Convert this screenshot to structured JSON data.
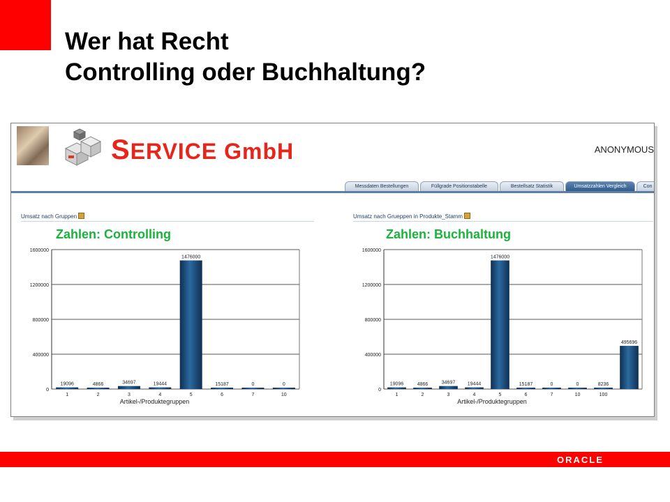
{
  "slide": {
    "title_line1": "Wer hat Recht",
    "title_line2": "Controlling oder Buchhaltung?",
    "footer_logo": "ORACLE"
  },
  "app": {
    "brand_s": "S",
    "brand_rest": "ERVICE GmbH",
    "user": "ANONYMOUS",
    "tabs": [
      {
        "label": "Messdaten Bestellungen",
        "active": false
      },
      {
        "label": "Füllgrade Positionstabelle",
        "active": false
      },
      {
        "label": "Bestellsatz Statistik",
        "active": false
      },
      {
        "label": "Umsatzzahlen Vergleich",
        "active": true
      },
      {
        "label": "Con",
        "active": false
      }
    ],
    "left_panel": {
      "title": "Umsatz nach Gruppen",
      "caption": "Zahlen: Controlling"
    },
    "right_panel": {
      "title": "Umsatz nach Grueppen in Produkte_Stamm",
      "caption": "Zahlen: Buchhaltung"
    }
  },
  "colors": {
    "accent_red": "#ff0000",
    "caption_green": "#1bb33c",
    "bar_blue": "#1f4f7d"
  },
  "chart_data": [
    {
      "type": "bar",
      "title": "",
      "xlabel": "Artikel-/Produktegruppen",
      "ylabel": "",
      "ylim": [
        0,
        1600000
      ],
      "yticks": [
        "0",
        "400000",
        "800000",
        "1200000",
        "1600000"
      ],
      "grid": true,
      "categories": [
        "1",
        "2",
        "3",
        "4",
        "5",
        "6",
        "7",
        "10"
      ],
      "values": [
        19096,
        4866,
        34697,
        19444,
        1476000,
        15187,
        0,
        0
      ],
      "labels": [
        "19096",
        "4866",
        "34697",
        "19444",
        "1476000",
        "15187",
        "0",
        "0"
      ]
    },
    {
      "type": "bar",
      "title": "",
      "xlabel": "Artikel-/Produktegruppen",
      "ylabel": "",
      "ylim": [
        0,
        1600000
      ],
      "yticks": [
        "0",
        "400000",
        "800000",
        "1200000",
        "1600000"
      ],
      "grid": true,
      "categories": [
        "1",
        "2",
        "3",
        "4",
        "5",
        "6",
        "7",
        "10",
        "100",
        ""
      ],
      "values": [
        19096,
        4866,
        34697,
        19444,
        1476000,
        15187,
        0,
        0,
        8236,
        495696
      ],
      "labels": [
        "19096",
        "4866",
        "34697",
        "19444",
        "1476000",
        "15187",
        "0",
        "0",
        "8236",
        "495696"
      ]
    }
  ]
}
